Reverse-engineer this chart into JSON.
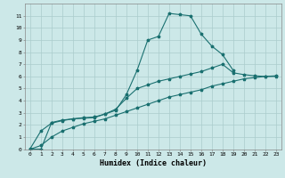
{
  "xlabel": "Humidex (Indice chaleur)",
  "bg_color": "#cce8e8",
  "grid_color": "#aacccc",
  "line_color": "#1a7070",
  "xlim": [
    -0.5,
    23.5
  ],
  "ylim": [
    0,
    12
  ],
  "yticks": [
    0,
    1,
    2,
    3,
    4,
    5,
    6,
    7,
    8,
    9,
    10,
    11
  ],
  "xticks": [
    0,
    1,
    2,
    3,
    4,
    5,
    6,
    7,
    8,
    9,
    10,
    11,
    12,
    13,
    14,
    15,
    16,
    17,
    18,
    19,
    20,
    21,
    22,
    23
  ],
  "curve1_x": [
    0,
    1,
    2,
    3,
    4,
    5,
    6,
    7,
    8,
    9,
    10,
    11,
    12,
    13,
    14,
    15,
    16,
    17,
    18,
    19
  ],
  "curve1_y": [
    0.0,
    0.0,
    2.2,
    2.4,
    2.5,
    2.55,
    2.6,
    2.9,
    3.2,
    4.5,
    6.5,
    9.0,
    9.3,
    11.2,
    11.1,
    11.0,
    9.5,
    8.5,
    7.8,
    6.5
  ],
  "curve2_x": [
    0,
    1,
    2,
    3,
    4,
    5,
    6,
    7,
    8,
    9,
    10,
    11,
    12,
    13,
    14,
    15,
    16,
    17,
    18,
    19,
    20,
    21,
    22,
    23
  ],
  "curve2_y": [
    0.05,
    1.5,
    2.15,
    2.35,
    2.5,
    2.6,
    2.65,
    2.9,
    3.3,
    4.2,
    5.0,
    5.3,
    5.6,
    5.8,
    6.0,
    6.2,
    6.4,
    6.7,
    7.0,
    6.3,
    6.15,
    6.05,
    6.0,
    6.0
  ],
  "curve3_x": [
    0,
    1,
    2,
    3,
    4,
    5,
    6,
    7,
    8,
    9,
    10,
    11,
    12,
    13,
    14,
    15,
    16,
    17,
    18,
    19,
    20,
    21,
    22,
    23
  ],
  "curve3_y": [
    0.0,
    0.3,
    1.0,
    1.5,
    1.8,
    2.1,
    2.3,
    2.5,
    2.8,
    3.1,
    3.4,
    3.7,
    4.0,
    4.3,
    4.5,
    4.7,
    4.9,
    5.2,
    5.4,
    5.6,
    5.8,
    5.9,
    6.0,
    6.05
  ]
}
